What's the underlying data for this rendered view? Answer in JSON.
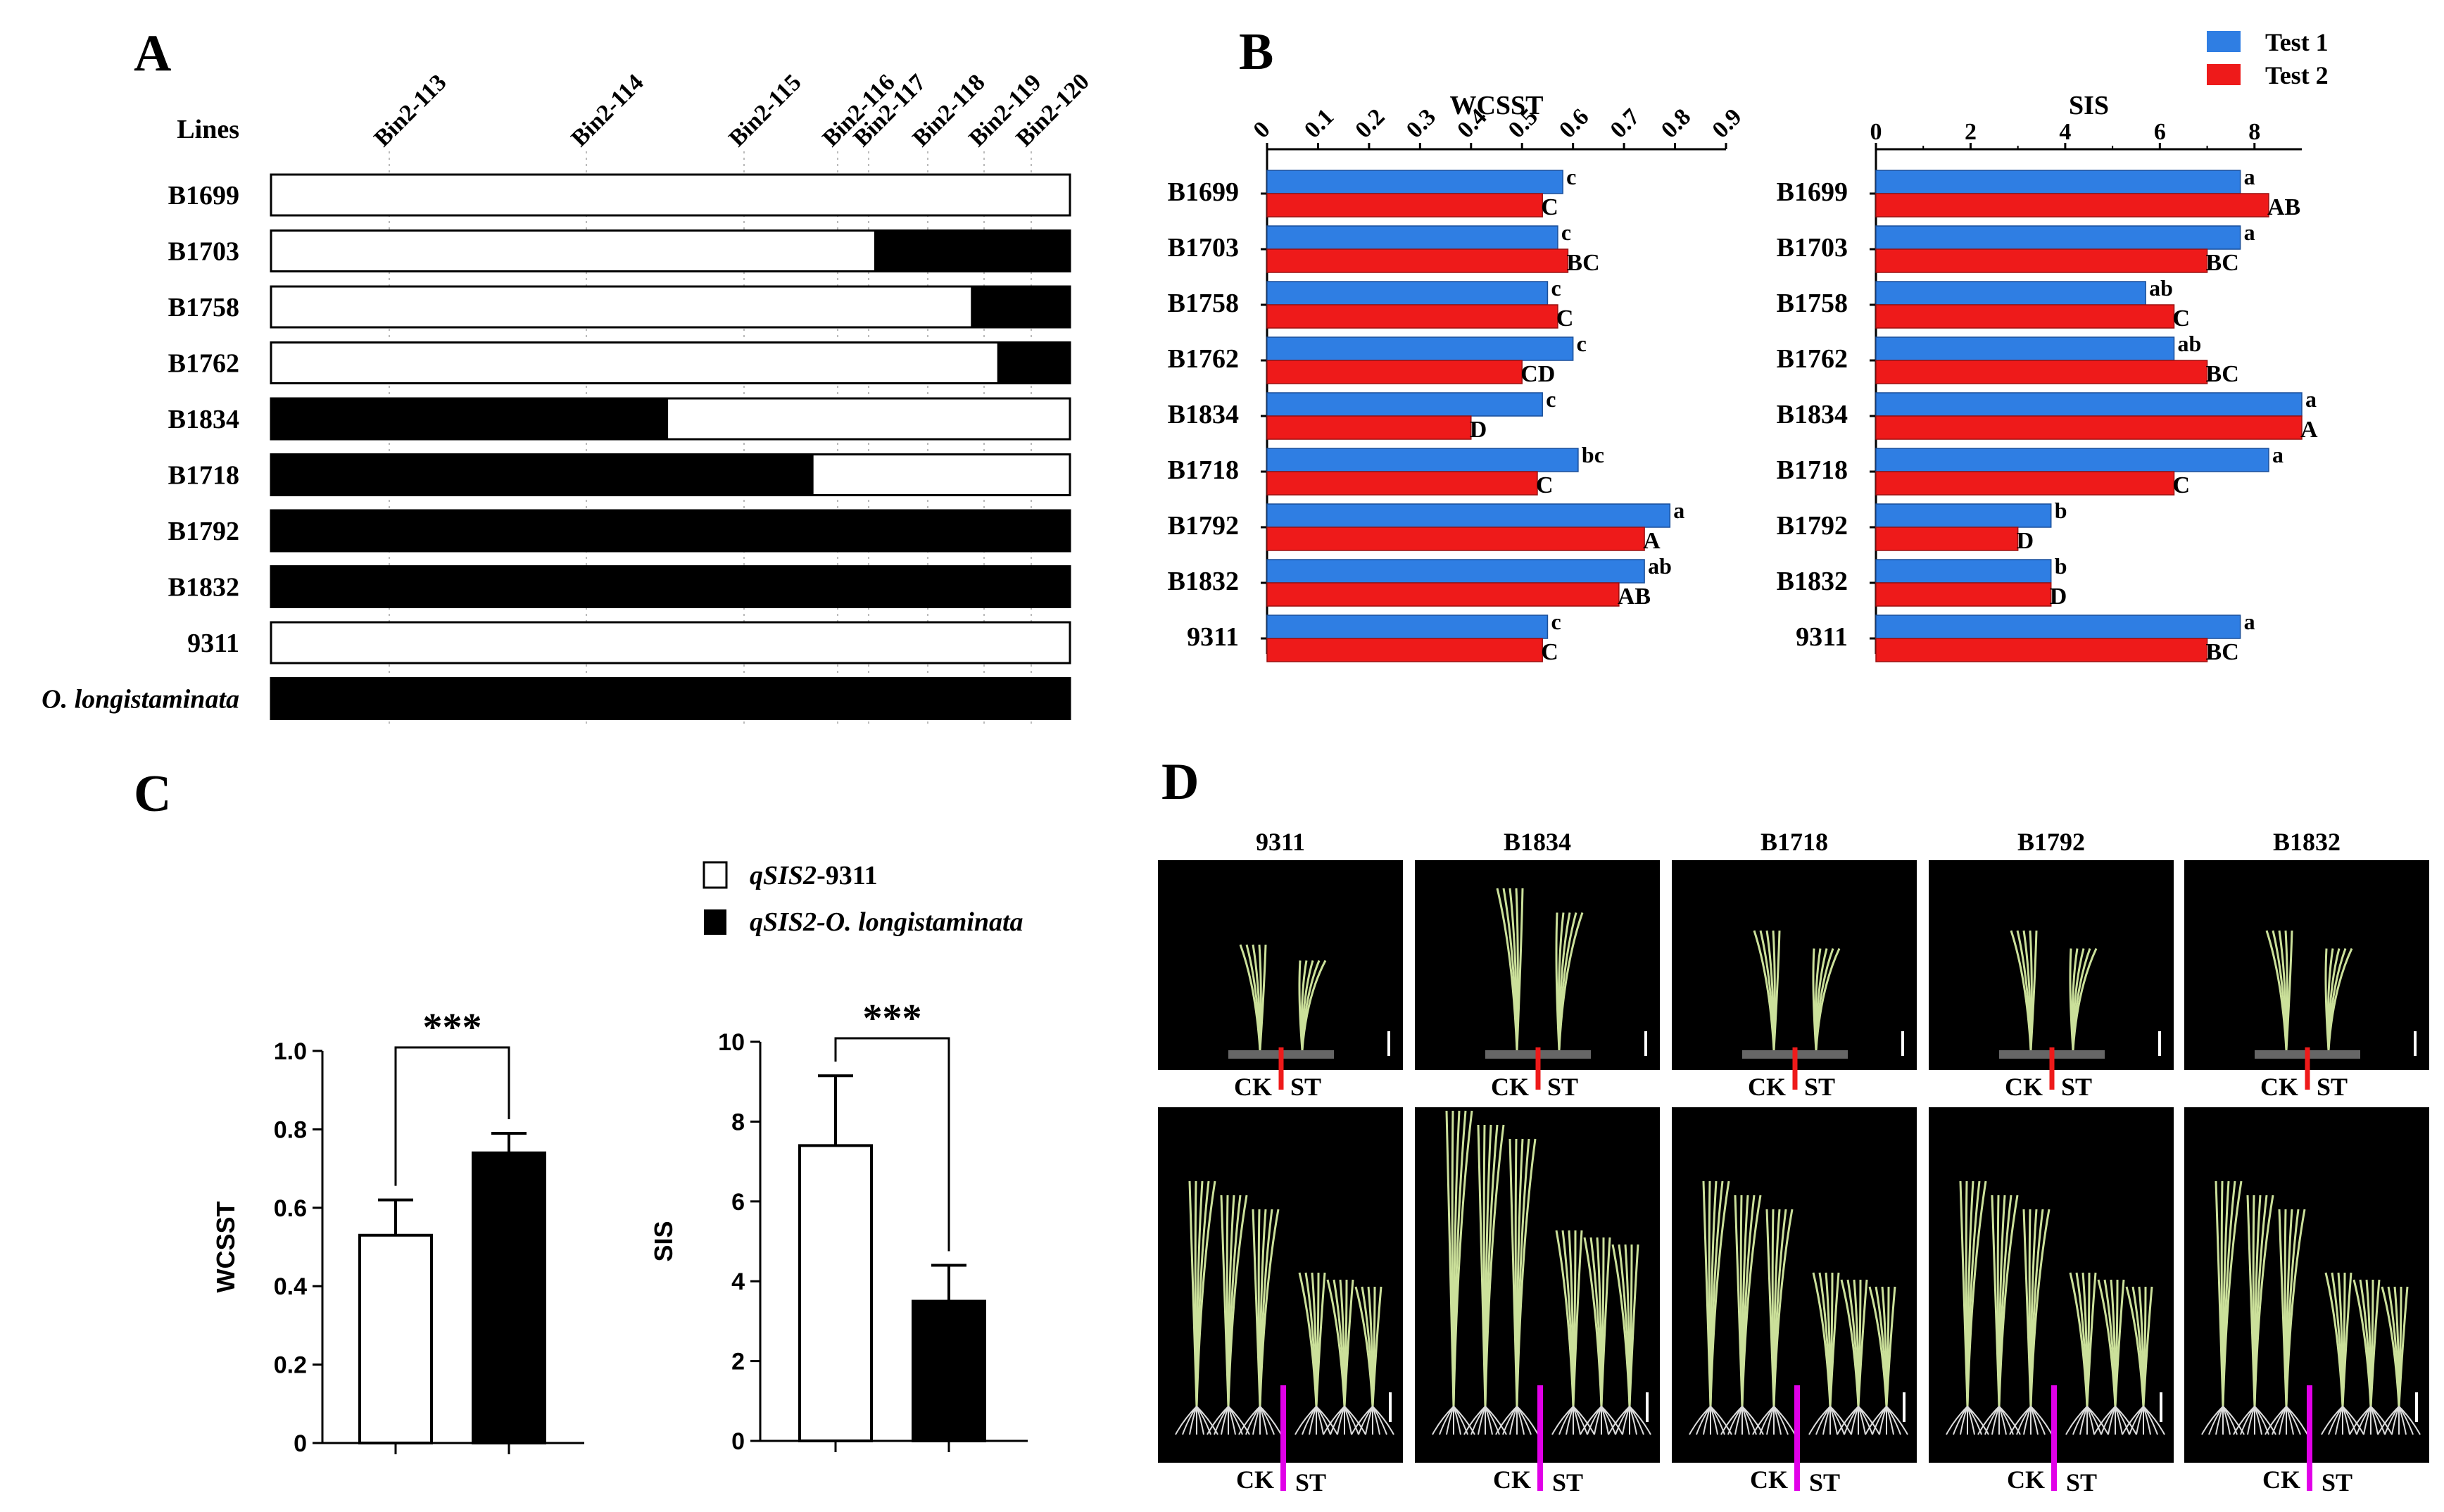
{
  "panels": {
    "a": "A",
    "b": "B",
    "c": "C",
    "d": "D"
  },
  "colors": {
    "test1": "#2f7ee3",
    "test2": "#ee1a1a",
    "introgression": "#000000",
    "background": "#ffffff",
    "photo_bg": "#000000",
    "ck_st_bar_top": "#ee1a1a",
    "ck_st_bar_bottom": "#e100e8"
  },
  "panel_a": {
    "lines_label": "Lines",
    "bins": [
      "Bin2-113",
      "Bin2-114",
      "Bin2-115",
      "Bin2-116",
      "Bin2-117",
      "Bin2-118",
      "Bin2-119",
      "Bin2-120"
    ],
    "rows": [
      {
        "name": "B1699",
        "black_from": null,
        "black_to": null
      },
      {
        "name": "B1703",
        "black_from": 0.755,
        "black_to": 1.0
      },
      {
        "name": "B1758",
        "black_from": 0.876,
        "black_to": 1.0
      },
      {
        "name": "B1762",
        "black_from": 0.909,
        "black_to": 1.0
      },
      {
        "name": "B1834",
        "black_from": 0.0,
        "black_to": 0.497
      },
      {
        "name": "B1718",
        "black_from": 0.0,
        "black_to": 0.679
      },
      {
        "name": "B1792",
        "black_from": 0.0,
        "black_to": 1.0
      },
      {
        "name": "B1832",
        "black_from": 0.0,
        "black_to": 1.0
      },
      {
        "name": "9311",
        "black_from": null,
        "black_to": null
      },
      {
        "name": "O. longistaminata",
        "black_from": 0.0,
        "black_to": 1.0,
        "italic": true
      }
    ]
  },
  "chart_data": [
    {
      "type": "bar",
      "title": "WCSST",
      "orientation": "horizontal",
      "xlim": [
        0,
        0.9
      ],
      "ticks": [
        "0",
        "0.1",
        "0.2",
        "0.3",
        "0.4",
        "0.5",
        "0.6",
        "0.7",
        "0.8",
        "0.9"
      ],
      "categories": [
        "B1699",
        "B1703",
        "B1758",
        "B1762",
        "B1834",
        "B1718",
        "B1792",
        "B1832",
        "9311"
      ],
      "series": [
        {
          "name": "Test 1",
          "values": [
            0.58,
            0.57,
            0.55,
            0.6,
            0.54,
            0.61,
            0.79,
            0.74,
            0.55
          ],
          "labels": [
            "c",
            "c",
            "c",
            "c",
            "c",
            "bc",
            "a",
            "ab",
            "c"
          ]
        },
        {
          "name": "Test 2",
          "values": [
            0.54,
            0.59,
            0.57,
            0.5,
            0.4,
            0.53,
            0.74,
            0.69,
            0.54
          ],
          "labels": [
            "C",
            "BC",
            "C",
            "CD",
            "D",
            "C",
            "A",
            "AB",
            "C"
          ]
        }
      ]
    },
    {
      "type": "bar",
      "title": "SIS",
      "orientation": "horizontal",
      "xlim": [
        0,
        9
      ],
      "ticks": [
        "0",
        "2",
        "4",
        "6",
        "8"
      ],
      "categories": [
        "B1699",
        "B1703",
        "B1758",
        "B1762",
        "B1834",
        "B1718",
        "B1792",
        "B1832",
        "9311"
      ],
      "series": [
        {
          "name": "Test 1",
          "values": [
            7.7,
            7.7,
            5.7,
            6.3,
            9.0,
            8.3,
            3.7,
            3.7,
            7.7
          ],
          "labels": [
            "a",
            "a",
            "ab",
            "ab",
            "a",
            "a",
            "b",
            "b",
            "a"
          ]
        },
        {
          "name": "Test 2",
          "values": [
            8.3,
            7.0,
            6.3,
            7.0,
            9.0,
            6.3,
            3.0,
            3.7,
            7.0
          ],
          "labels": [
            "AB",
            "BC",
            "C",
            "BC",
            "A",
            "C",
            "D",
            "D",
            "BC"
          ]
        }
      ]
    },
    {
      "type": "bar",
      "ylabel": "WCSST",
      "ylim": [
        0,
        1.0
      ],
      "ticks": [
        "0",
        "0.2",
        "0.4",
        "0.6",
        "0.8",
        "1.0"
      ],
      "categories": [
        "qSIS2-9311",
        "qSIS2-O. longistaminata"
      ],
      "values": [
        0.53,
        0.74
      ],
      "errors": [
        0.09,
        0.05
      ],
      "significance": "***"
    },
    {
      "type": "bar",
      "ylabel": "SIS",
      "ylim": [
        0,
        10
      ],
      "ticks": [
        "0",
        "2",
        "4",
        "6",
        "8",
        "10"
      ],
      "categories": [
        "qSIS2-9311",
        "qSIS2-O. longistaminata"
      ],
      "values": [
        7.4,
        3.5
      ],
      "errors": [
        1.75,
        0.9
      ],
      "significance": "***"
    }
  ],
  "legend_b": {
    "test1": "Test 1",
    "test2": "Test 2"
  },
  "legend_c": {
    "open_prefix": "qSIS2",
    "open_suffix": "-9311",
    "filled_prefix": "qSIS2",
    "filled_suffix": "-O. longistaminata"
  },
  "panel_d": {
    "lines": [
      "9311",
      "B1834",
      "B1718",
      "B1792",
      "B1832"
    ],
    "ck": "CK",
    "st": "ST"
  }
}
